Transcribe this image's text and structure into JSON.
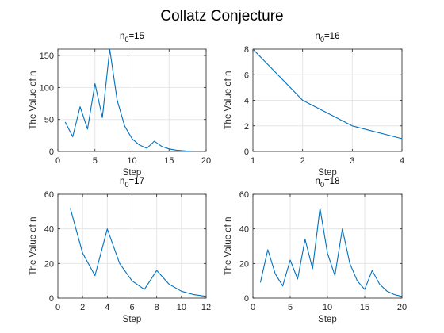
{
  "title": "Collatz Conjecture",
  "colors": {
    "line": "#0072BD",
    "grid": "#e6e6e6",
    "axis": "#262626"
  },
  "chart_data": [
    {
      "type": "line",
      "title_main": "n",
      "title_sub": "0",
      "title_rest": "=15",
      "xlabel": "Step",
      "ylabel": "The Value of n",
      "xlim": [
        0,
        20
      ],
      "ylim": [
        0,
        160
      ],
      "xticks": [
        0,
        5,
        10,
        15,
        20
      ],
      "yticks": [
        0,
        50,
        100,
        150
      ],
      "grid": true,
      "x": [
        1,
        2,
        3,
        4,
        5,
        6,
        7,
        8,
        9,
        10,
        11,
        12,
        13,
        14,
        15,
        16,
        17,
        18
      ],
      "y": [
        46,
        23,
        70,
        35,
        106,
        53,
        160,
        80,
        40,
        20,
        10,
        5,
        16,
        8,
        4,
        2,
        1,
        0
      ]
    },
    {
      "type": "line",
      "title_main": "n",
      "title_sub": "0",
      "title_rest": "=16",
      "xlabel": "Step",
      "ylabel": "The Value of n",
      "xlim": [
        1,
        4
      ],
      "ylim": [
        0,
        8
      ],
      "xticks": [
        1,
        2,
        3,
        4
      ],
      "yticks": [
        0,
        2,
        4,
        6,
        8
      ],
      "grid": true,
      "x": [
        1,
        2,
        3,
        4
      ],
      "y": [
        8,
        4,
        2,
        1
      ]
    },
    {
      "type": "line",
      "title_main": "n",
      "title_sub": "0",
      "title_rest": "=17",
      "xlabel": "Step",
      "ylabel": "The Value of n",
      "xlim": [
        0,
        12
      ],
      "ylim": [
        0,
        60
      ],
      "xticks": [
        0,
        2,
        4,
        6,
        8,
        10,
        12
      ],
      "yticks": [
        0,
        20,
        40,
        60
      ],
      "grid": true,
      "x": [
        1,
        2,
        3,
        4,
        5,
        6,
        7,
        8,
        9,
        10,
        11,
        12
      ],
      "y": [
        52,
        26,
        13,
        40,
        20,
        10,
        5,
        16,
        8,
        4,
        2,
        1
      ]
    },
    {
      "type": "line",
      "title_main": "n",
      "title_sub": "0",
      "title_rest": "=18",
      "xlabel": "Step",
      "ylabel": "The Value of n",
      "xlim": [
        0,
        20
      ],
      "ylim": [
        0,
        60
      ],
      "xticks": [
        0,
        5,
        10,
        15,
        20
      ],
      "yticks": [
        0,
        20,
        40,
        60
      ],
      "grid": true,
      "x": [
        1,
        2,
        3,
        4,
        5,
        6,
        7,
        8,
        9,
        10,
        11,
        12,
        13,
        14,
        15,
        16,
        17,
        18,
        19,
        20
      ],
      "y": [
        9,
        28,
        14,
        7,
        22,
        11,
        34,
        17,
        52,
        26,
        13,
        40,
        20,
        10,
        5,
        16,
        8,
        4,
        2,
        1
      ]
    }
  ]
}
